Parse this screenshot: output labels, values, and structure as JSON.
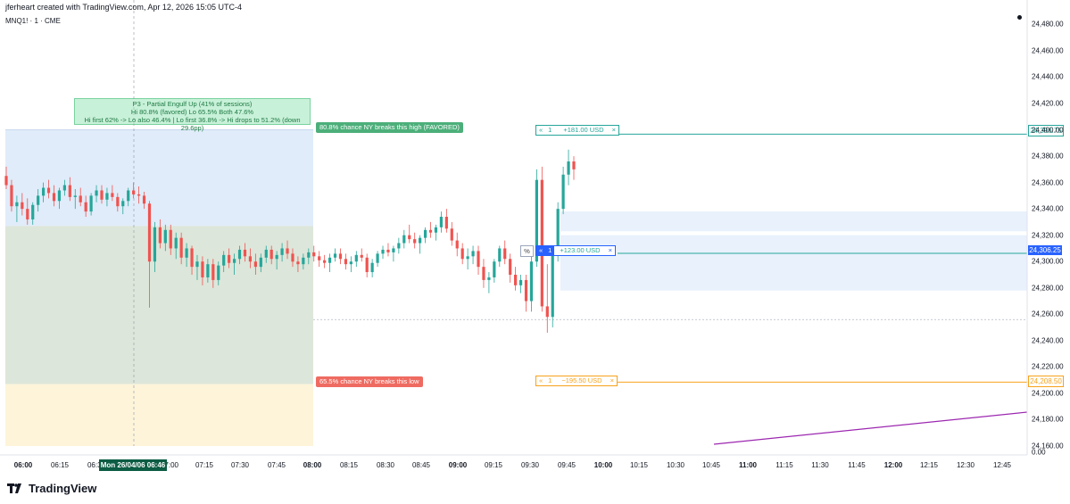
{
  "header": {
    "created_by": "jferheart created with TradingView.com, Apr 12, 2026 15:05 UTC-4",
    "symbol": "MNQ1! · 1 · CME"
  },
  "branding": {
    "logo_text": "TradingView"
  },
  "crosshair": {
    "time_label": "Mon 26/04/06   06:46"
  },
  "info_box": {
    "line1": "P3 - Partial Engulf Up  (41% of sessions)",
    "line2": "Hi 80.8% (favored)  Lo 65.5%  Both 47.6%",
    "line3": "Hi first 62% -> Lo also 46.4%  |  Lo first 36.8% -> Hi drops to 51.2% (down 29.6pp)"
  },
  "labels": {
    "high_label": "80.8% chance NY breaks this high (FAVORED)",
    "low_label": "65.5% chance NY breaks this low"
  },
  "orders": {
    "take_profit": {
      "qty": "1",
      "pnl": "+181.00 USD",
      "close": "×",
      "price": "24,396.75",
      "color": "#26a69a"
    },
    "position": {
      "pct": "%",
      "qty": "1",
      "pnl": "+123.00 USD",
      "close": "×",
      "price": "24,306.25",
      "color": "#2962ff"
    },
    "stop_loss": {
      "qty": "1",
      "pnl": "−195.50 USD",
      "close": "×",
      "price": "24,208.50",
      "color": "#f7a21b"
    }
  },
  "x_axis": [
    {
      "label": "06:00",
      "bold": true
    },
    {
      "label": "06:15"
    },
    {
      "label": "06:30"
    },
    {
      "label": "07:00"
    },
    {
      "label": "07:15"
    },
    {
      "label": "07:30"
    },
    {
      "label": "07:45"
    },
    {
      "label": "08:00",
      "bold": true
    },
    {
      "label": "08:15"
    },
    {
      "label": "08:30"
    },
    {
      "label": "08:45"
    },
    {
      "label": "09:00",
      "bold": true
    },
    {
      "label": "09:15"
    },
    {
      "label": "09:30"
    },
    {
      "label": "09:45"
    },
    {
      "label": "10:00",
      "bold": true
    },
    {
      "label": "10:15"
    },
    {
      "label": "10:30"
    },
    {
      "label": "10:45"
    },
    {
      "label": "11:00",
      "bold": true
    },
    {
      "label": "11:15"
    },
    {
      "label": "11:30"
    },
    {
      "label": "11:45"
    },
    {
      "label": "12:00",
      "bold": true
    },
    {
      "label": "12:15"
    },
    {
      "label": "12:30"
    },
    {
      "label": "12:45"
    }
  ],
  "y_axis": [
    "24,480.00",
    "24,460.00",
    "24,440.00",
    "24,420.00",
    "24,400.00",
    "24,380.00",
    "24,360.00",
    "24,340.00",
    "24,320.00",
    "24,300.00",
    "24,280.00",
    "24,260.00",
    "24,240.00",
    "24,220.00",
    "24,200.00",
    "24,180.00",
    "24,160.00"
  ],
  "y_axis_bottom": "0.00",
  "chart_data": {
    "type": "candlestick",
    "symbol": "MNQ1!",
    "y_range": [
      24160,
      24485
    ],
    "levels": {
      "asia_box_high": 24400,
      "asia_mid": 24327,
      "asia_box_low": 24207,
      "take_profit": 24396.75,
      "entry": 24306.25,
      "stop_loss": 24208.5,
      "dotted_low": 24256
    },
    "candles": [
      [
        24365,
        24372,
        24355,
        24358
      ],
      [
        24358,
        24362,
        24338,
        24342
      ],
      [
        24342,
        24350,
        24330,
        24345
      ],
      [
        24345,
        24352,
        24335,
        24340
      ],
      [
        24340,
        24348,
        24328,
        24332
      ],
      [
        24332,
        24345,
        24328,
        24343
      ],
      [
        24343,
        24355,
        24338,
        24350
      ],
      [
        24350,
        24360,
        24345,
        24356
      ],
      [
        24356,
        24362,
        24348,
        24352
      ],
      [
        24352,
        24358,
        24342,
        24346
      ],
      [
        24346,
        24356,
        24340,
        24354
      ],
      [
        24354,
        24362,
        24350,
        24358
      ],
      [
        24358,
        24364,
        24346,
        24349
      ],
      [
        24349,
        24355,
        24340,
        24350
      ],
      [
        24350,
        24356,
        24342,
        24345
      ],
      [
        24345,
        24350,
        24334,
        24338
      ],
      [
        24338,
        24352,
        24335,
        24350
      ],
      [
        24350,
        24358,
        24345,
        24354
      ],
      [
        24354,
        24358,
        24344,
        24347
      ],
      [
        24347,
        24356,
        24342,
        24352
      ],
      [
        24352,
        24358,
        24346,
        24349
      ],
      [
        24349,
        24352,
        24338,
        24342
      ],
      [
        24342,
        24348,
        24336,
        24346
      ],
      [
        24346,
        24356,
        24342,
        24354
      ],
      [
        24354,
        24360,
        24348,
        24351
      ],
      [
        24351,
        24357,
        24344,
        24350
      ],
      [
        24350,
        24353,
        24340,
        24344
      ],
      [
        24344,
        24346,
        24265,
        24300
      ],
      [
        24300,
        24330,
        24292,
        24326
      ],
      [
        24326,
        24332,
        24310,
        24314
      ],
      [
        24314,
        24328,
        24308,
        24324
      ],
      [
        24324,
        24328,
        24305,
        24310
      ],
      [
        24310,
        24322,
        24302,
        24318
      ],
      [
        24318,
        24322,
        24298,
        24303
      ],
      [
        24303,
        24314,
        24296,
        24310
      ],
      [
        24310,
        24312,
        24290,
        24296
      ],
      [
        24296,
        24305,
        24286,
        24300
      ],
      [
        24300,
        24304,
        24282,
        24288
      ],
      [
        24288,
        24302,
        24284,
        24298
      ],
      [
        24298,
        24302,
        24280,
        24286
      ],
      [
        24286,
        24300,
        24282,
        24297
      ],
      [
        24297,
        24308,
        24292,
        24305
      ],
      [
        24305,
        24310,
        24295,
        24299
      ],
      [
        24299,
        24306,
        24290,
        24302
      ],
      [
        24302,
        24312,
        24298,
        24309
      ],
      [
        24309,
        24314,
        24300,
        24304
      ],
      [
        24304,
        24310,
        24295,
        24300
      ],
      [
        24300,
        24306,
        24290,
        24296
      ],
      [
        24296,
        24306,
        24292,
        24303
      ],
      [
        24303,
        24312,
        24299,
        24309
      ],
      [
        24309,
        24312,
        24298,
        24302
      ],
      [
        24302,
        24308,
        24294,
        24305
      ],
      [
        24305,
        24314,
        24300,
        24310
      ],
      [
        24310,
        24316,
        24302,
        24306
      ],
      [
        24306,
        24310,
        24296,
        24300
      ],
      [
        24300,
        24304,
        24292,
        24298
      ],
      [
        24298,
        24306,
        24294,
        24303
      ],
      [
        24303,
        24310,
        24298,
        24307
      ],
      [
        24307,
        24312,
        24300,
        24304
      ],
      [
        24304,
        24308,
        24296,
        24301
      ],
      [
        24301,
        24305,
        24295,
        24299
      ],
      [
        24299,
        24306,
        24292,
        24303
      ],
      [
        24303,
        24310,
        24300,
        24306
      ],
      [
        24306,
        24310,
        24298,
        24302
      ],
      [
        24302,
        24306,
        24294,
        24298
      ],
      [
        24298,
        24304,
        24292,
        24300
      ],
      [
        24300,
        24308,
        24296,
        24305
      ],
      [
        24305,
        24310,
        24300,
        24303
      ],
      [
        24303,
        24306,
        24288,
        24292
      ],
      [
        24292,
        24302,
        24288,
        24299
      ],
      [
        24299,
        24308,
        24296,
        24306
      ],
      [
        24306,
        24312,
        24302,
        24309
      ],
      [
        24309,
        24314,
        24304,
        24307
      ],
      [
        24307,
        24312,
        24300,
        24310
      ],
      [
        24310,
        24318,
        24306,
        24314
      ],
      [
        24314,
        24324,
        24310,
        24320
      ],
      [
        24320,
        24328,
        24314,
        24317
      ],
      [
        24317,
        24322,
        24310,
        24314
      ],
      [
        24314,
        24320,
        24306,
        24318
      ],
      [
        24318,
        24326,
        24314,
        24324
      ],
      [
        24324,
        24330,
        24318,
        24322
      ],
      [
        24322,
        24328,
        24316,
        24326
      ],
      [
        24326,
        24338,
        24322,
        24334
      ],
      [
        24334,
        24340,
        24322,
        24325
      ],
      [
        24325,
        24330,
        24312,
        24316
      ],
      [
        24316,
        24322,
        24304,
        24310
      ],
      [
        24310,
        24314,
        24298,
        24302
      ],
      [
        24302,
        24310,
        24294,
        24304
      ],
      [
        24304,
        24312,
        24298,
        24308
      ],
      [
        24308,
        24312,
        24290,
        24296
      ],
      [
        24296,
        24302,
        24280,
        24286
      ],
      [
        24286,
        24292,
        24276,
        24288
      ],
      [
        24288,
        24302,
        24284,
        24300
      ],
      [
        24300,
        24312,
        24296,
        24310
      ],
      [
        24310,
        24316,
        24298,
        24302
      ],
      [
        24302,
        24306,
        24284,
        24290
      ],
      [
        24290,
        24296,
        24278,
        24282
      ],
      [
        24282,
        24290,
        24276,
        24286
      ],
      [
        24286,
        24290,
        24262,
        24270
      ],
      [
        24270,
        24305,
        24262,
        24300
      ],
      [
        24300,
        24370,
        24296,
        24362
      ],
      [
        24362,
        24372,
        24262,
        24266
      ],
      [
        24266,
        24298,
        24246,
        24258
      ],
      [
        24258,
        24310,
        24250,
        24305
      ],
      [
        24305,
        24345,
        24300,
        24340
      ],
      [
        24340,
        24372,
        24336,
        24366
      ],
      [
        24366,
        24385,
        24358,
        24376
      ],
      [
        24376,
        24380,
        24362,
        24370
      ]
    ]
  }
}
